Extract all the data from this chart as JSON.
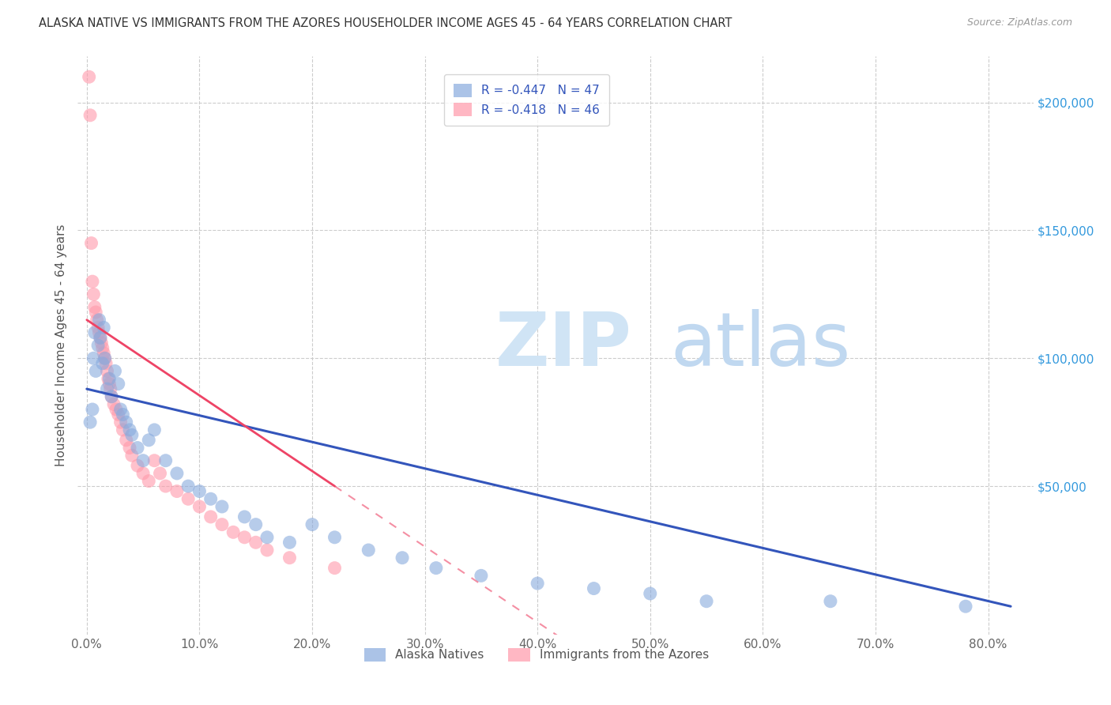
{
  "title": "ALASKA NATIVE VS IMMIGRANTS FROM THE AZORES HOUSEHOLDER INCOME AGES 45 - 64 YEARS CORRELATION CHART",
  "source": "Source: ZipAtlas.com",
  "ylabel": "Householder Income Ages 45 - 64 years",
  "xlabel_ticks": [
    "0.0%",
    "10.0%",
    "20.0%",
    "30.0%",
    "40.0%",
    "50.0%",
    "60.0%",
    "70.0%",
    "80.0%"
  ],
  "xlabel_vals": [
    0.0,
    0.1,
    0.2,
    0.3,
    0.4,
    0.5,
    0.6,
    0.7,
    0.8
  ],
  "ytick_labels": [
    "$50,000",
    "$100,000",
    "$150,000",
    "$200,000"
  ],
  "ytick_vals": [
    50000,
    100000,
    150000,
    200000
  ],
  "xlim": [
    -0.008,
    0.84
  ],
  "ylim": [
    -8000,
    218000
  ],
  "alaska_R": "-0.447",
  "alaska_N": "47",
  "azores_R": "-0.418",
  "azores_N": "46",
  "alaska_color": "#88AADD",
  "azores_color": "#FF99AA",
  "alaska_line_color": "#3355BB",
  "azores_line_color": "#EE4466",
  "watermark_zip": "ZIP",
  "watermark_atlas": "atlas",
  "legend_label_blue": "Alaska Natives",
  "legend_label_pink": "Immigrants from the Azores",
  "alaska_x": [
    0.003,
    0.005,
    0.006,
    0.007,
    0.008,
    0.01,
    0.011,
    0.012,
    0.014,
    0.015,
    0.016,
    0.018,
    0.02,
    0.022,
    0.025,
    0.028,
    0.03,
    0.032,
    0.035,
    0.038,
    0.04,
    0.045,
    0.05,
    0.055,
    0.06,
    0.07,
    0.08,
    0.09,
    0.1,
    0.11,
    0.12,
    0.14,
    0.15,
    0.16,
    0.18,
    0.2,
    0.22,
    0.25,
    0.28,
    0.31,
    0.35,
    0.4,
    0.45,
    0.5,
    0.55,
    0.66,
    0.78
  ],
  "alaska_y": [
    75000,
    80000,
    100000,
    110000,
    95000,
    105000,
    115000,
    108000,
    98000,
    112000,
    100000,
    88000,
    92000,
    85000,
    95000,
    90000,
    80000,
    78000,
    75000,
    72000,
    70000,
    65000,
    60000,
    68000,
    72000,
    60000,
    55000,
    50000,
    48000,
    45000,
    42000,
    38000,
    35000,
    30000,
    28000,
    35000,
    30000,
    25000,
    22000,
    18000,
    15000,
    12000,
    10000,
    8000,
    5000,
    5000,
    3000
  ],
  "azores_x": [
    0.002,
    0.003,
    0.004,
    0.005,
    0.006,
    0.007,
    0.008,
    0.009,
    0.01,
    0.011,
    0.012,
    0.013,
    0.014,
    0.015,
    0.016,
    0.017,
    0.018,
    0.019,
    0.02,
    0.021,
    0.022,
    0.024,
    0.026,
    0.028,
    0.03,
    0.032,
    0.035,
    0.038,
    0.04,
    0.045,
    0.05,
    0.055,
    0.06,
    0.065,
    0.07,
    0.08,
    0.09,
    0.1,
    0.11,
    0.12,
    0.13,
    0.14,
    0.15,
    0.16,
    0.18,
    0.22
  ],
  "azores_y": [
    210000,
    195000,
    145000,
    130000,
    125000,
    120000,
    118000,
    115000,
    112000,
    110000,
    108000,
    106000,
    104000,
    102000,
    100000,
    98000,
    95000,
    92000,
    90000,
    88000,
    85000,
    82000,
    80000,
    78000,
    75000,
    72000,
    68000,
    65000,
    62000,
    58000,
    55000,
    52000,
    60000,
    55000,
    50000,
    48000,
    45000,
    42000,
    38000,
    35000,
    32000,
    30000,
    28000,
    25000,
    22000,
    18000
  ],
  "alaska_line_x0": 0.0,
  "alaska_line_y0": 88000,
  "alaska_line_x1": 0.82,
  "alaska_line_y1": 3000,
  "azores_line_x0": 0.0,
  "azores_line_y0": 115000,
  "azores_line_x1": 0.22,
  "azores_line_y1": 50000
}
